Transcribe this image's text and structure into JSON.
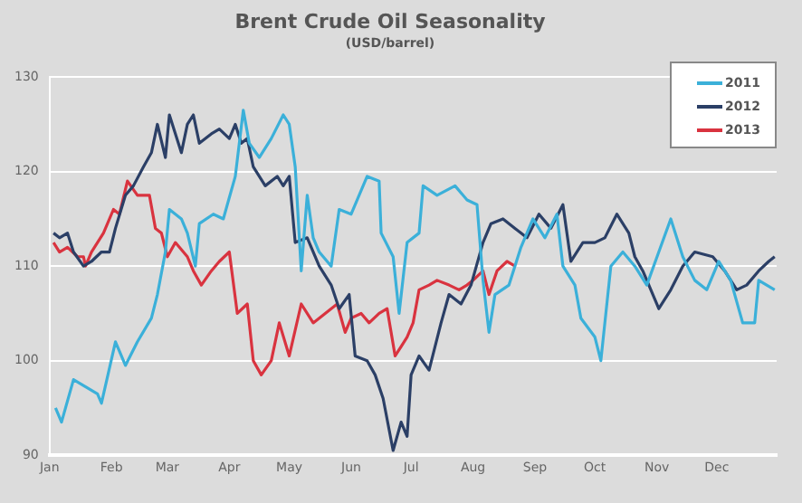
{
  "chart_data": {
    "type": "line",
    "title": "Brent Crude Oil Seasonality",
    "subtitle": "(USD/barrel)",
    "xlim": [
      "--01-01",
      "--12-31"
    ],
    "xticks": [
      {
        "value": "--01-01",
        "label": "Jan"
      },
      {
        "value": "--02-01",
        "label": "Feb"
      },
      {
        "value": "--03-01",
        "label": "Mar"
      },
      {
        "value": "--04-01",
        "label": "Apr"
      },
      {
        "value": "--05-01",
        "label": "May"
      },
      {
        "value": "--06-01",
        "label": "Jun"
      },
      {
        "value": "--07-01",
        "label": "Jul"
      },
      {
        "value": "--08-01",
        "label": "Aug"
      },
      {
        "value": "--09-01",
        "label": "Sep"
      },
      {
        "value": "--10-01",
        "label": "Oct"
      },
      {
        "value": "--11-01",
        "label": "Nov"
      },
      {
        "value": "--12-01",
        "label": "Dec"
      }
    ],
    "ylim": [
      90,
      130
    ],
    "yticks": [
      90,
      100,
      110,
      120,
      130
    ],
    "grid": "y",
    "legend": "top right",
    "marker": "none",
    "line_style": "solid",
    "series": [
      {
        "name": "2011",
        "color": "#3bb0d9",
        "x": [
          "--01-04",
          "--01-07",
          "--01-13",
          "--01-25",
          "--01-27",
          "--02-03",
          "--02-08",
          "--02-14",
          "--02-21",
          "--02-24",
          "--02-28",
          "--03-02",
          "--03-08",
          "--03-11",
          "--03-15",
          "--03-17",
          "--03-24",
          "--03-29",
          "--04-04",
          "--04-08",
          "--04-11",
          "--04-16",
          "--04-22",
          "--04-28",
          "--05-01",
          "--05-04",
          "--05-07",
          "--05-10",
          "--05-13",
          "--05-16",
          "--05-22",
          "--05-26",
          "--06-01",
          "--06-09",
          "--06-15",
          "--06-16",
          "--06-22",
          "--06-25",
          "--06-29",
          "--07-05",
          "--07-07",
          "--07-14",
          "--07-23",
          "--07-29",
          "--08-03",
          "--08-06",
          "--08-09",
          "--08-12",
          "--08-19",
          "--08-25",
          "--08-31",
          "--09-06",
          "--09-12",
          "--09-15",
          "--09-21",
          "--09-24",
          "--10-01",
          "--10-04",
          "--10-09",
          "--10-15",
          "--10-21",
          "--10-27",
          "--11-02",
          "--11-08",
          "--11-14",
          "--11-20",
          "--11-26",
          "--12-02",
          "--12-08",
          "--12-14",
          "--12-20",
          "--12-22",
          "--12-30"
        ],
        "values": [
          95,
          93.5,
          98,
          96.5,
          95.5,
          102,
          99.5,
          102,
          104.5,
          107,
          111.5,
          116,
          115,
          113.5,
          110,
          114.5,
          115.5,
          115,
          119.5,
          126.5,
          123,
          121.5,
          123.5,
          126,
          125,
          120.5,
          109.5,
          117.5,
          113,
          111.5,
          110,
          116,
          115.5,
          119.5,
          119,
          113.5,
          111,
          105,
          112.5,
          113.5,
          118.5,
          117.5,
          118.5,
          117,
          116.5,
          108.5,
          103,
          107,
          108,
          112,
          115,
          113,
          115.5,
          110,
          108,
          104.5,
          102.5,
          100,
          110,
          111.5,
          110,
          108,
          111.5,
          115,
          111,
          108.5,
          107.5,
          110.5,
          108.5,
          104,
          104,
          108.5,
          107.5
        ]
      },
      {
        "name": "2012",
        "color": "#2b3f66",
        "x": [
          "--01-03",
          "--01-06",
          "--01-10",
          "--01-13",
          "--01-18",
          "--01-22",
          "--01-27",
          "--01-31",
          "--02-03",
          "--02-08",
          "--02-12",
          "--02-17",
          "--02-21",
          "--02-24",
          "--02-28",
          "--03-02",
          "--03-08",
          "--03-11",
          "--03-14",
          "--03-17",
          "--03-23",
          "--03-27",
          "--04-01",
          "--04-04",
          "--04-07",
          "--04-10",
          "--04-13",
          "--04-19",
          "--04-25",
          "--04-28",
          "--05-01",
          "--05-04",
          "--05-10",
          "--05-16",
          "--05-22",
          "--05-26",
          "--05-31",
          "--06-03",
          "--06-09",
          "--06-13",
          "--06-17",
          "--06-22",
          "--06-26",
          "--06-29",
          "--07-01",
          "--07-05",
          "--07-10",
          "--07-16",
          "--07-20",
          "--07-26",
          "--07-31",
          "--08-06",
          "--08-10",
          "--08-16",
          "--08-22",
          "--08-28",
          "--09-03",
          "--09-09",
          "--09-15",
          "--09-19",
          "--09-25",
          "--10-01",
          "--10-06",
          "--10-12",
          "--10-18",
          "--10-21",
          "--10-25",
          "--11-02",
          "--11-08",
          "--11-14",
          "--11-20",
          "--11-29",
          "--12-05",
          "--12-11",
          "--12-16",
          "--12-22",
          "--12-27",
          "--12-30"
        ],
        "values": [
          113.5,
          113,
          113.5,
          111.5,
          110,
          110.5,
          111.5,
          111.5,
          114,
          117.5,
          118.5,
          120.5,
          122,
          125,
          121.5,
          126,
          122,
          125,
          126,
          123,
          124,
          124.5,
          123.5,
          125,
          123,
          123.5,
          120.5,
          118.5,
          119.5,
          118.5,
          119.5,
          112.5,
          113,
          110,
          108,
          105.5,
          107,
          100.5,
          100,
          98.5,
          96,
          90.5,
          93.5,
          92,
          98.5,
          100.5,
          99,
          104,
          107,
          106,
          108,
          112.5,
          114.5,
          115,
          114,
          113,
          115.5,
          114,
          116.5,
          110.5,
          112.5,
          112.5,
          113,
          115.5,
          113.5,
          111,
          109.5,
          105.5,
          107.5,
          110,
          111.5,
          111,
          109.5,
          107.5,
          108,
          109.5,
          110.5,
          111
        ]
      },
      {
        "name": "2013",
        "color": "#d9333f",
        "x": [
          "--01-03",
          "--01-06",
          "--01-10",
          "--01-15",
          "--01-18",
          "--01-19",
          "--01-22",
          "--01-28",
          "--02-02",
          "--02-05",
          "--02-09",
          "--02-14",
          "--02-20",
          "--02-23",
          "--02-26",
          "--03-01",
          "--03-05",
          "--03-11",
          "--03-14",
          "--03-18",
          "--03-23",
          "--03-27",
          "--04-01",
          "--04-05",
          "--04-10",
          "--04-13",
          "--04-17",
          "--04-22",
          "--04-26",
          "--05-01",
          "--05-07",
          "--05-13",
          "--05-19",
          "--05-25",
          "--05-29",
          "--06-01",
          "--06-06",
          "--06-10",
          "--06-15",
          "--06-19",
          "--06-23",
          "--06-26",
          "--06-29",
          "--07-02",
          "--07-05",
          "--07-10",
          "--07-14",
          "--07-20",
          "--07-25",
          "--07-29",
          "--08-01",
          "--08-06",
          "--08-09",
          "--08-13",
          "--08-18",
          "--08-22"
        ],
        "values": [
          112.5,
          111.5,
          112,
          111,
          111,
          110,
          111.5,
          113.5,
          116,
          115.5,
          119,
          117.5,
          117.5,
          114,
          113.5,
          111,
          112.5,
          111,
          109.5,
          108,
          109.5,
          110.5,
          111.5,
          105,
          106,
          100,
          98.5,
          100,
          104,
          100.5,
          106,
          104,
          105,
          106,
          103,
          104.5,
          105,
          104,
          105,
          105.5,
          100.5,
          101.5,
          102.5,
          104,
          107.5,
          108,
          108.5,
          108,
          107.5,
          108,
          108.5,
          109.5,
          107,
          109.5,
          110.5,
          110
        ]
      }
    ]
  }
}
